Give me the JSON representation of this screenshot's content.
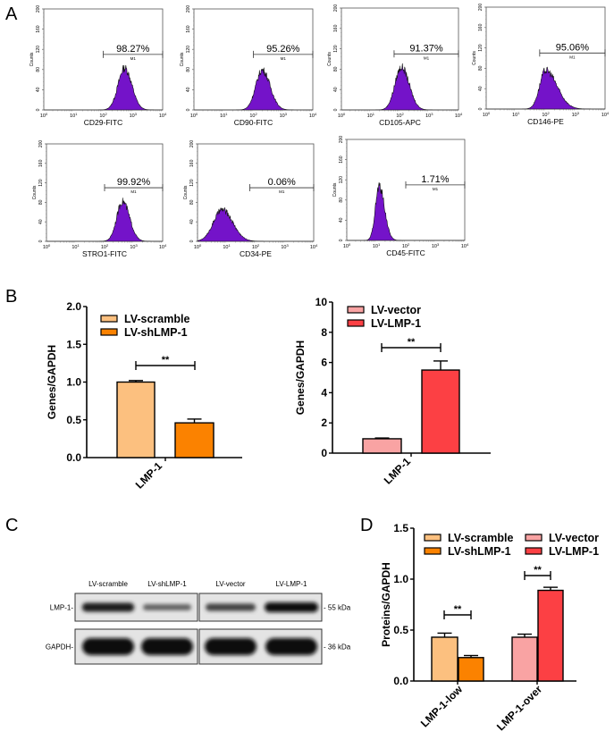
{
  "panel_labels": {
    "a": "A",
    "b": "B",
    "c": "C",
    "d": "D"
  },
  "chart_data": [
    {
      "type": "histogram",
      "panel": "A",
      "ylabel": "Counts",
      "yticks": [
        "0",
        "40",
        "80",
        "120",
        "160",
        "200"
      ],
      "ylim": [
        0,
        200
      ],
      "xscale": "log",
      "xticks": [
        "10^0",
        "10^1",
        "10^2",
        "10^3",
        "10^4"
      ],
      "gate_label": "M1",
      "fill_color": "#7413c9",
      "histograms": [
        {
          "marker": "CD29-FITC",
          "percent": "98.27%",
          "gate_log10": [
            2,
            4
          ],
          "peak_log10": 2.72,
          "peak_counts": 83,
          "spread": 0.22,
          "skew": 0.1
        },
        {
          "marker": "CD90-FITC",
          "percent": "95.26%",
          "gate_log10": [
            2,
            4
          ],
          "peak_log10": 2.3,
          "peak_counts": 79,
          "spread": 0.22,
          "skew": 0.2
        },
        {
          "marker": "CD105-APC",
          "percent": "91.37%",
          "gate_log10": [
            1.8,
            4
          ],
          "peak_log10": 2.05,
          "peak_counts": 84,
          "spread": 0.22,
          "skew": 0.2
        },
        {
          "marker": "CD146-PE",
          "percent": "95.06%",
          "gate_log10": [
            1.8,
            4
          ],
          "peak_log10": 2.0,
          "peak_counts": 76,
          "spread": 0.2,
          "skew": 0.9
        },
        {
          "marker": "STRO1-FITC",
          "percent": "99.92%",
          "gate_log10": [
            2,
            4
          ],
          "peak_log10": 2.62,
          "peak_counts": 82,
          "spread": 0.2,
          "skew": 0.2
        },
        {
          "marker": "CD34-PE",
          "percent": "0.06%",
          "gate_log10": [
            1.8,
            4
          ],
          "peak_log10": 0.85,
          "peak_counts": 65,
          "spread": 0.3,
          "skew": 0.2
        },
        {
          "marker": "CD45-FITC",
          "percent": "1.71%",
          "gate_log10": [
            2,
            4
          ],
          "peak_log10": 1.1,
          "peak_counts": 107,
          "spread": 0.13,
          "skew": 0.4
        }
      ]
    },
    {
      "type": "bar",
      "panel": "B-left",
      "ylabel": "Genes/GAPDH",
      "categories": [
        "LMP-1"
      ],
      "ylim": [
        0,
        2.0
      ],
      "yticks": [
        "0.0",
        "0.5",
        "1.0",
        "1.5",
        "2.0"
      ],
      "series": [
        {
          "name": "LV-scramble",
          "values": [
            1.0
          ],
          "error": [
            0.02
          ],
          "color": "#fcc07f"
        },
        {
          "name": "LV-shLMP-1",
          "values": [
            0.46
          ],
          "error": [
            0.05
          ],
          "color": "#fb8200"
        }
      ],
      "significance": "**"
    },
    {
      "type": "bar",
      "panel": "B-right",
      "ylabel": "Genes/GAPDH",
      "categories": [
        "LMP-1"
      ],
      "ylim": [
        0,
        10
      ],
      "yticks": [
        "0",
        "2",
        "4",
        "6",
        "8",
        "10"
      ],
      "series": [
        {
          "name": "LV-vector",
          "values": [
            0.95
          ],
          "error": [
            0.05
          ],
          "color": "#f9a3a3"
        },
        {
          "name": "LV-LMP-1",
          "values": [
            5.5
          ],
          "error": [
            0.6
          ],
          "color": "#fc4044"
        }
      ],
      "significance": "**"
    },
    {
      "type": "bar",
      "panel": "D",
      "ylabel": "Proteins/GAPDH",
      "categories": [
        "LMP-1-low",
        "LMP-1-over"
      ],
      "ylim": [
        0,
        1.5
      ],
      "yticks": [
        "0.0",
        "0.5",
        "1.0",
        "1.5"
      ],
      "series": [
        {
          "name": "LV-scramble",
          "values": [
            0.43,
            null
          ],
          "error": [
            0.04,
            null
          ],
          "color": "#fcc07f"
        },
        {
          "name": "LV-shLMP-1",
          "values": [
            0.23,
            null
          ],
          "error": [
            0.02,
            null
          ],
          "color": "#fb8200"
        },
        {
          "name": "LV-vector",
          "values": [
            null,
            0.43
          ],
          "error": [
            null,
            0.03
          ],
          "color": "#f9a3a3"
        },
        {
          "name": "LV-LMP-1",
          "values": [
            null,
            0.89
          ],
          "error": [
            null,
            0.03
          ],
          "color": "#fc4044"
        }
      ],
      "significance": [
        "**",
        "**"
      ]
    }
  ],
  "western_blot": {
    "lanes": [
      "LV-scramble",
      "LV-shLMP-1",
      "LV-vector",
      "LV-LMP-1"
    ],
    "rows": [
      {
        "label": "LMP-1-",
        "size": "- 55 kDa",
        "band_intensity": [
          0.85,
          0.4,
          0.6,
          1.0
        ]
      },
      {
        "label": "GAPDH-",
        "size": "- 36 kDa",
        "band_intensity": [
          1.0,
          1.0,
          1.0,
          1.0
        ]
      }
    ]
  }
}
